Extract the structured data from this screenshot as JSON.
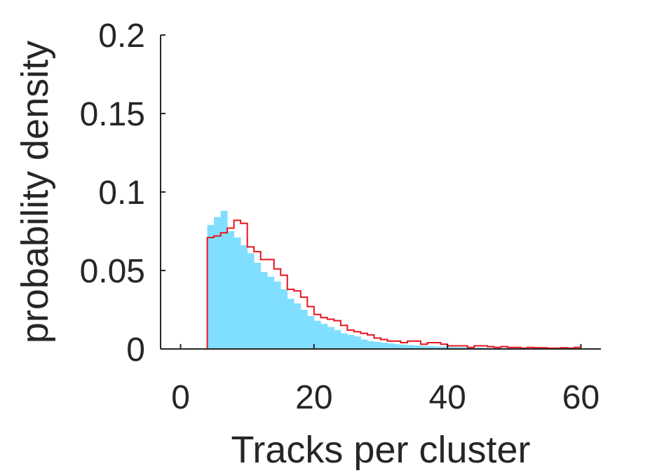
{
  "chart_data": {
    "type": "histogram",
    "xlabel": "Tracks per cluster",
    "ylabel": "probability density",
    "xlim": [
      -3,
      63
    ],
    "ylim": [
      0,
      0.2
    ],
    "xticks": [
      "0",
      "20",
      "40",
      "60"
    ],
    "yticks": [
      "0",
      "0.05",
      "0.1",
      "0.15",
      "0.2"
    ],
    "grid": false,
    "legend": "none",
    "bin_width": 1,
    "bin_start": 4,
    "series": [
      {
        "style": "filled-bars",
        "color": "#80DFFF",
        "values": [
          0.079,
          0.084,
          0.088,
          0.075,
          0.071,
          0.066,
          0.061,
          0.055,
          0.049,
          0.046,
          0.043,
          0.038,
          0.032,
          0.029,
          0.025,
          0.021,
          0.018,
          0.016,
          0.014,
          0.012,
          0.01,
          0.009,
          0.008,
          0.006,
          0.005,
          0.0045,
          0.004,
          0.0035,
          0.003,
          0.0028,
          0.0025,
          0.0022,
          0.002,
          0.0018,
          0.0016,
          0.0015,
          0.0013,
          0.0012,
          0.0011,
          0.001,
          0.0009,
          0.0008,
          0.0008,
          0.0007,
          0.0006,
          0.0006,
          0.0005,
          0.0005,
          0.0004,
          0.0004,
          0.0004,
          0.0003,
          0.0003,
          0.0003,
          0.0003,
          0.0002
        ]
      },
      {
        "style": "stairs",
        "color": "#E8141E",
        "values": [
          0.071,
          0.072,
          0.074,
          0.077,
          0.082,
          0.08,
          0.065,
          0.062,
          0.057,
          0.057,
          0.051,
          0.047,
          0.038,
          0.037,
          0.033,
          0.027,
          0.022,
          0.02,
          0.019,
          0.018,
          0.015,
          0.012,
          0.011,
          0.01,
          0.009,
          0.007,
          0.006,
          0.005,
          0.005,
          0.004,
          0.005,
          0.005,
          0.003,
          0.004,
          0.004,
          0.003,
          0.002,
          0.002,
          0.002,
          0.001,
          0.002,
          0.002,
          0.0015,
          0.001,
          0.0015,
          0.001,
          0.001,
          0.0005,
          0.001,
          0.0008,
          0.0008,
          0.0005,
          0.0005,
          0.0008,
          0.0005,
          0.001
        ]
      }
    ]
  }
}
